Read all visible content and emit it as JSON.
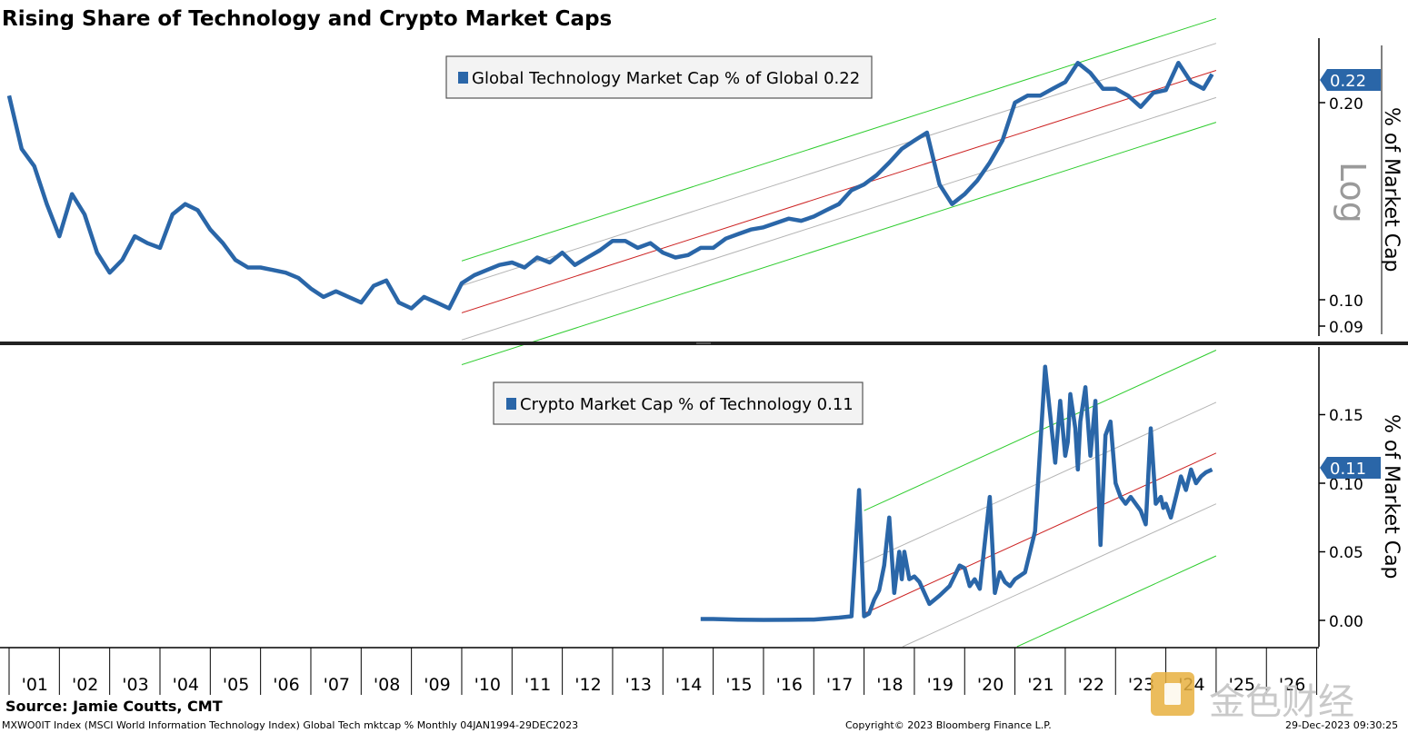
{
  "chart_title": "Rising Share of Technology and Crypto Market Caps",
  "source": "Source: Jamie Coutts, CMT",
  "footer_left": "MXWO0IT Index (MSCI World Information Technology Index) Global Tech mktcap %  Monthly 04JAN1994-29DEC2023",
  "footer_center": "Copyright© 2023 Bloomberg Finance L.P.",
  "footer_right": "29-Dec-2023 09:30:25",
  "watermark": "金色财经",
  "colors": {
    "series": "#2a66a8",
    "trend_mid": "#cc2222",
    "trend_outer": "#2ecc2e",
    "trend_inner": "#b4b4b4",
    "tag": "#2a66a8"
  },
  "chart_data": [
    {
      "type": "line",
      "scale": "log",
      "grid": false,
      "legend_position": "top-center",
      "series": [
        {
          "name": "Global Technology Market Cap % of Global",
          "last_value": "0.22"
        }
      ],
      "ylabel": "% of Market Cap",
      "scale_label": "Log",
      "yticks": [
        "0.20",
        "0.10",
        "0.09"
      ],
      "last_tag": "0.22",
      "trend_channel": {
        "start": "2009-01",
        "end": "2024-01",
        "mid_start": 0.0955,
        "mid_end": 0.224
      },
      "x": [
        2000.0,
        2000.25,
        2000.5,
        2000.75,
        2001.0,
        2001.25,
        2001.5,
        2001.75,
        2002.0,
        2002.25,
        2002.5,
        2002.75,
        2003.0,
        2003.25,
        2003.5,
        2003.75,
        2004.0,
        2004.25,
        2004.5,
        2004.75,
        2005.0,
        2005.25,
        2005.5,
        2005.75,
        2006.0,
        2006.25,
        2006.5,
        2006.75,
        2007.0,
        2007.25,
        2007.5,
        2007.75,
        2008.0,
        2008.25,
        2008.5,
        2008.75,
        2009.0,
        2009.25,
        2009.5,
        2009.75,
        2010.0,
        2010.25,
        2010.5,
        2010.75,
        2011.0,
        2011.25,
        2011.5,
        2011.75,
        2012.0,
        2012.25,
        2012.5,
        2012.75,
        2013.0,
        2013.25,
        2013.5,
        2013.75,
        2014.0,
        2014.25,
        2014.5,
        2014.75,
        2015.0,
        2015.25,
        2015.5,
        2015.75,
        2016.0,
        2016.25,
        2016.5,
        2016.75,
        2017.0,
        2017.25,
        2017.5,
        2017.75,
        2018.0,
        2018.25,
        2018.5,
        2018.75,
        2019.0,
        2019.25,
        2019.5,
        2019.75,
        2020.0,
        2020.25,
        2020.5,
        2020.75,
        2021.0,
        2021.25,
        2021.5,
        2021.75,
        2022.0,
        2022.25,
        2022.5,
        2022.75,
        2023.0,
        2023.25,
        2023.5,
        2023.75,
        2023.92
      ],
      "y": [
        0.205,
        0.17,
        0.16,
        0.14,
        0.125,
        0.145,
        0.135,
        0.118,
        0.11,
        0.115,
        0.125,
        0.122,
        0.12,
        0.135,
        0.14,
        0.137,
        0.128,
        0.122,
        0.115,
        0.112,
        0.112,
        0.111,
        0.11,
        0.108,
        0.104,
        0.101,
        0.103,
        0.101,
        0.099,
        0.105,
        0.107,
        0.099,
        0.097,
        0.101,
        0.099,
        0.097,
        0.106,
        0.109,
        0.111,
        0.113,
        0.114,
        0.112,
        0.116,
        0.114,
        0.118,
        0.113,
        0.116,
        0.119,
        0.123,
        0.123,
        0.12,
        0.122,
        0.118,
        0.116,
        0.117,
        0.12,
        0.12,
        0.124,
        0.126,
        0.128,
        0.129,
        0.131,
        0.133,
        0.132,
        0.134,
        0.137,
        0.14,
        0.147,
        0.15,
        0.155,
        0.162,
        0.17,
        0.175,
        0.18,
        0.15,
        0.14,
        0.145,
        0.152,
        0.162,
        0.175,
        0.2,
        0.205,
        0.205,
        0.21,
        0.215,
        0.23,
        0.222,
        0.21,
        0.21,
        0.205,
        0.197,
        0.207,
        0.209,
        0.23,
        0.215,
        0.21,
        0.221
      ]
    },
    {
      "type": "line",
      "scale": "linear",
      "grid": false,
      "legend_position": "top-center",
      "series": [
        {
          "name": "Crypto Market Cap % of Technology",
          "last_value": "0.11"
        }
      ],
      "ylabel": "% of Market Cap",
      "yticks": [
        "0.15",
        "0.10",
        "0.05",
        "0.00"
      ],
      "ylim": [
        -0.01,
        0.19
      ],
      "last_tag": "0.11",
      "trend_channel": {
        "start": "2017-01",
        "end": "2024-01",
        "mid_start": 0.005,
        "mid_end": 0.122,
        "outer_offset": 0.075,
        "inner_offset": 0.037
      },
      "x": [
        2013.75,
        2014.0,
        2014.5,
        2015.0,
        2015.5,
        2016.0,
        2016.5,
        2016.75,
        2016.9,
        2017.0,
        2017.1,
        2017.2,
        2017.3,
        2017.4,
        2017.5,
        2017.6,
        2017.7,
        2017.75,
        2017.8,
        2017.9,
        2018.0,
        2018.1,
        2018.2,
        2018.3,
        2018.5,
        2018.7,
        2018.9,
        2019.0,
        2019.1,
        2019.2,
        2019.3,
        2019.5,
        2019.6,
        2019.7,
        2019.8,
        2019.9,
        2020.0,
        2020.2,
        2020.4,
        2020.6,
        2020.8,
        2020.9,
        2021.0,
        2021.05,
        2021.1,
        2021.2,
        2021.25,
        2021.3,
        2021.4,
        2021.5,
        2021.6,
        2021.7,
        2021.8,
        2021.9,
        2022.0,
        2022.1,
        2022.2,
        2022.3,
        2022.5,
        2022.6,
        2022.7,
        2022.8,
        2022.9,
        2022.95,
        2023.0,
        2023.1,
        2023.2,
        2023.3,
        2023.4,
        2023.5,
        2023.6,
        2023.7,
        2023.8,
        2023.92
      ],
      "y": [
        0.001,
        0.001,
        0.0005,
        0.0003,
        0.0004,
        0.0006,
        0.002,
        0.003,
        0.095,
        0.003,
        0.005,
        0.015,
        0.022,
        0.04,
        0.075,
        0.02,
        0.05,
        0.03,
        0.05,
        0.03,
        0.032,
        0.028,
        0.02,
        0.012,
        0.018,
        0.025,
        0.04,
        0.038,
        0.025,
        0.03,
        0.023,
        0.09,
        0.02,
        0.035,
        0.028,
        0.025,
        0.03,
        0.035,
        0.065,
        0.185,
        0.115,
        0.16,
        0.12,
        0.13,
        0.165,
        0.14,
        0.11,
        0.145,
        0.17,
        0.12,
        0.16,
        0.055,
        0.135,
        0.145,
        0.1,
        0.09,
        0.085,
        0.09,
        0.08,
        0.07,
        0.14,
        0.085,
        0.09,
        0.082,
        0.085,
        0.075,
        0.09,
        0.105,
        0.095,
        0.11,
        0.1,
        0.105,
        0.108,
        0.11
      ]
    }
  ],
  "x_ticks": [
    "'01",
    "'02",
    "'03",
    "'04",
    "'05",
    "'06",
    "'07",
    "'08",
    "'09",
    "'10",
    "'11",
    "'12",
    "'13",
    "'14",
    "'15",
    "'16",
    "'17",
    "'18",
    "'19",
    "'20",
    "'21",
    "'22",
    "'23",
    "'24",
    "'25",
    "'26"
  ]
}
